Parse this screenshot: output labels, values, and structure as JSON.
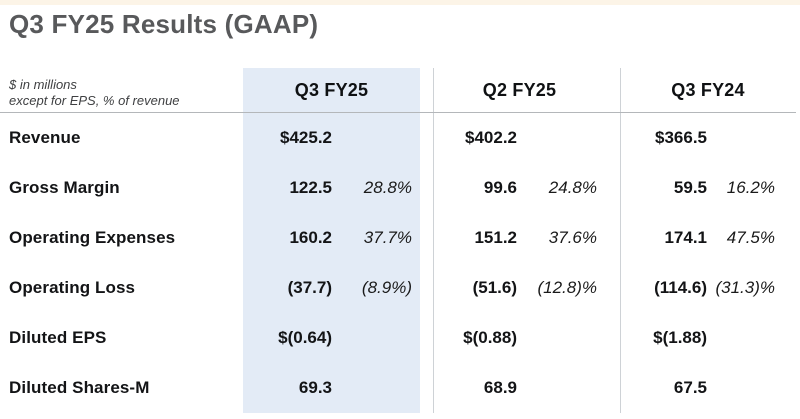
{
  "page": {
    "title": "Q3 FY25 Results (GAAP)",
    "note_line1": "$ in millions",
    "note_line2": "except for EPS, % of revenue"
  },
  "colors": {
    "top_accent_bar": "#fcf4e7",
    "highlight_column": "#e3ebf6",
    "title_text": "#58595b",
    "divider": "#ced2d6",
    "header_rule": "#b4b7ba"
  },
  "table": {
    "column_headers": [
      "Q3 FY25",
      "Q2 FY25",
      "Q3 FY24"
    ],
    "highlighted_column": "Q3 FY25",
    "rows": [
      {
        "label": "Revenue",
        "q3fy25_value": "$425.2",
        "q3fy25_pct": "",
        "q2fy25_value": "$402.2",
        "q2fy25_pct": "",
        "q3fy24_value": "$366.5",
        "q3fy24_pct": ""
      },
      {
        "label": "Gross Margin",
        "q3fy25_value": "122.5",
        "q3fy25_pct": "28.8%",
        "q2fy25_value": "99.6",
        "q2fy25_pct": "24.8%",
        "q3fy24_value": "59.5",
        "q3fy24_pct": "16.2%"
      },
      {
        "label": "Operating Expenses",
        "q3fy25_value": "160.2",
        "q3fy25_pct": "37.7%",
        "q2fy25_value": "151.2",
        "q2fy25_pct": "37.6%",
        "q3fy24_value": "174.1",
        "q3fy24_pct": "47.5%"
      },
      {
        "label": "Operating Loss",
        "q3fy25_value": "(37.7)",
        "q3fy25_pct": "(8.9%)",
        "q2fy25_value": "(51.6)",
        "q2fy25_pct": "(12.8)%",
        "q3fy24_value": "(114.6)",
        "q3fy24_pct": "(31.3)%"
      },
      {
        "label": "Diluted EPS",
        "q3fy25_value": "$(0.64)",
        "q3fy25_pct": "",
        "q2fy25_value": "$(0.88)",
        "q2fy25_pct": "",
        "q3fy24_value": "$(1.88)",
        "q3fy24_pct": ""
      },
      {
        "label": "Diluted Shares-M",
        "q3fy25_value": "69.3",
        "q3fy25_pct": "",
        "q2fy25_value": "68.9",
        "q2fy25_pct": "",
        "q3fy24_value": "67.5",
        "q3fy24_pct": ""
      }
    ]
  }
}
